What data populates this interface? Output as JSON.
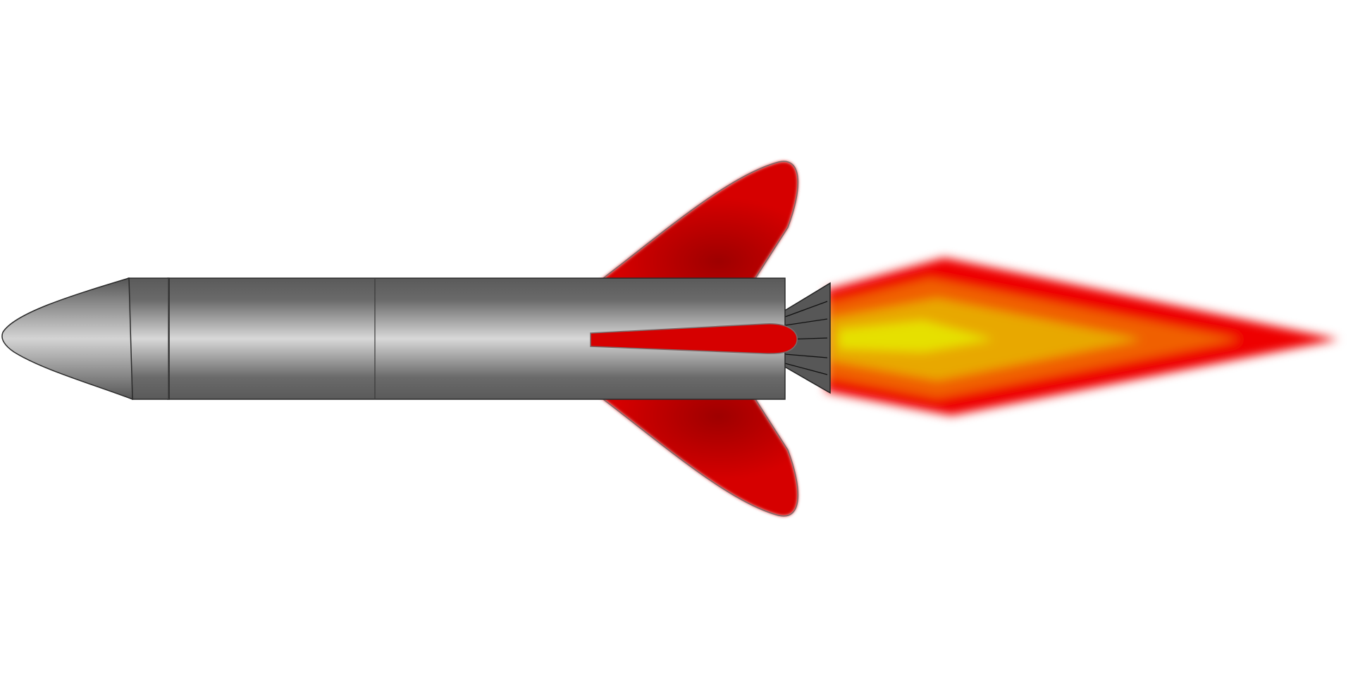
{
  "scene": {
    "subject": "rocket",
    "background_color": "#ffffff",
    "colors": {
      "body_dark": "#5a5a5a",
      "body_light": "#d8d8d8",
      "outline": "#333333",
      "fin_red": "#d60000",
      "fin_shadow": "#9e0000",
      "nozzle": "#575757",
      "flame_outer": "#ee0000",
      "flame_orange": "#f06000",
      "flame_amber": "#e8a800",
      "flame_core": "#e6e000"
    },
    "icons": [
      "rocket-icon",
      "flame-icon"
    ]
  }
}
